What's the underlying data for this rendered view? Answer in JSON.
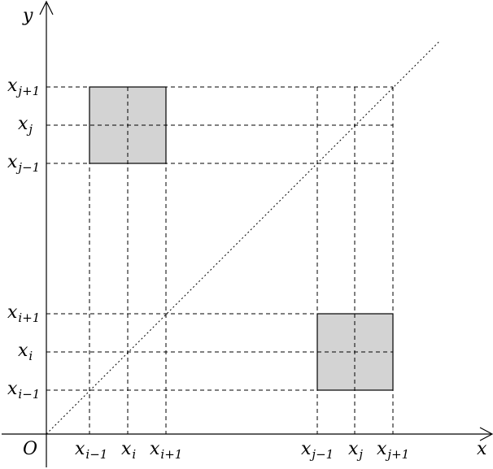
{
  "axes": {
    "x_label": "x",
    "y_label": "y",
    "origin_label": "O"
  },
  "x_ticks": [
    {
      "base": "x",
      "sub": "i−1"
    },
    {
      "base": "x",
      "sub": "i"
    },
    {
      "base": "x",
      "sub": "i+1"
    },
    {
      "base": "x",
      "sub": "j−1"
    },
    {
      "base": "x",
      "sub": "j"
    },
    {
      "base": "x",
      "sub": "j+1"
    }
  ],
  "y_ticks": [
    {
      "base": "x",
      "sub": "j+1"
    },
    {
      "base": "x",
      "sub": "j"
    },
    {
      "base": "x",
      "sub": "j−1"
    },
    {
      "base": "x",
      "sub": "i+1"
    },
    {
      "base": "x",
      "sub": "i"
    },
    {
      "base": "x",
      "sub": "i−1"
    }
  ],
  "colors": {
    "shade": "#d3d3d3",
    "line": "#000000"
  }
}
